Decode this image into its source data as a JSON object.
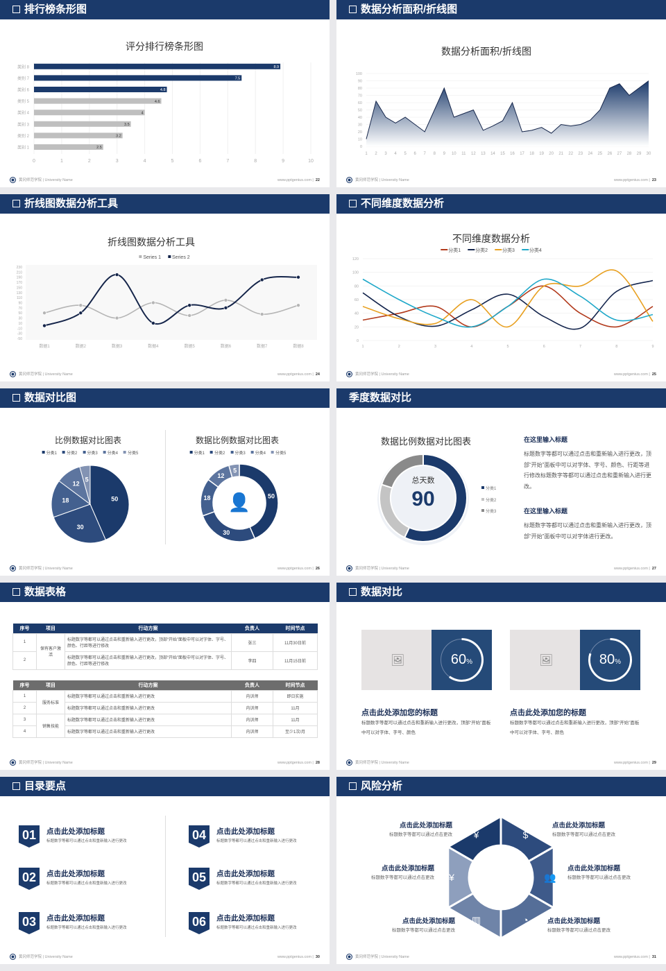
{
  "footer": {
    "org": "黄冈师范学院 | University Name",
    "url": "www.pptgenius.com"
  },
  "slides": [
    {
      "title": "排行榜条形图",
      "page": "22"
    },
    {
      "title": "数据分析面积/折线图",
      "page": "23"
    },
    {
      "title": "折线图数据分析工具",
      "page": "24"
    },
    {
      "title": "不同维度数据分析",
      "page": "25"
    },
    {
      "title": "数据对比图",
      "page": "26"
    },
    {
      "title": "季度数据对比",
      "page": "27"
    },
    {
      "title": "数据表格",
      "page": "28"
    },
    {
      "title": "数据对比",
      "page": "29"
    },
    {
      "title": "目录要点",
      "page": "30"
    },
    {
      "title": "风险分析",
      "page": "31"
    }
  ],
  "chart_data": [
    {
      "type": "bar",
      "orientation": "horizontal",
      "title": "评分排行榜条形图",
      "categories": [
        "类别 1",
        "类别 2",
        "类别 3",
        "类别 4",
        "类别 5",
        "类别 6",
        "类别 7",
        "类别 8"
      ],
      "values": [
        2.5,
        3.2,
        3.5,
        4,
        4.6,
        4.8,
        7.5,
        8.9
      ],
      "xlim": [
        0,
        10
      ],
      "xticks": [
        "0",
        "1",
        "2",
        "3",
        "4",
        "5",
        "6",
        "7",
        "8",
        "9",
        "10"
      ],
      "highlight_color": "#1b3a6b",
      "base_color": "#bfbfbf",
      "grid": true
    },
    {
      "type": "area",
      "title": "数据分析面积/折线图",
      "x": [
        1,
        2,
        3,
        4,
        5,
        6,
        7,
        8,
        9,
        10,
        11,
        12,
        13,
        14,
        15,
        16,
        17,
        18,
        19,
        20,
        21,
        22,
        23,
        24,
        25,
        26,
        27,
        28,
        29,
        30
      ],
      "values": [
        10,
        62,
        40,
        32,
        40,
        30,
        20,
        50,
        80,
        40,
        45,
        50,
        22,
        28,
        35,
        60,
        20,
        22,
        26,
        18,
        30,
        28,
        30,
        36,
        50,
        80,
        86,
        70,
        80,
        90
      ],
      "ylim": [
        0,
        100
      ],
      "yticks": [
        "0",
        "10",
        "20",
        "30",
        "40",
        "50",
        "60",
        "70",
        "80",
        "90",
        "100"
      ],
      "color": "#1b3a6b"
    },
    {
      "type": "line",
      "title": "折线图数据分析工具",
      "categories": [
        "数据1",
        "数据2",
        "数据3",
        "数据4",
        "数据5",
        "数据6",
        "数据7",
        "数据8"
      ],
      "ylim": [
        -50,
        230
      ],
      "yticks": [
        "-50",
        "-30",
        "-10",
        "10",
        "30",
        "50",
        "70",
        "90",
        "110",
        "130",
        "150",
        "170",
        "190",
        "210",
        "230"
      ],
      "legend": "top",
      "series": [
        {
          "name": "Series 1",
          "values": [
            50,
            80,
            30,
            90,
            40,
            100,
            45,
            80
          ],
          "color": "#b5b5b5"
        },
        {
          "name": "Series 2",
          "values": [
            0,
            50,
            200,
            10,
            80,
            70,
            180,
            190
          ],
          "color": "#15254a"
        }
      ]
    },
    {
      "type": "line",
      "title": "不同维度数据分析",
      "categories": [
        "1",
        "2",
        "3",
        "4",
        "5",
        "6",
        "7",
        "8",
        "9"
      ],
      "ylim": [
        0,
        120
      ],
      "yticks": [
        "0",
        "20",
        "40",
        "60",
        "80",
        "100",
        "120"
      ],
      "legend": "top",
      "series": [
        {
          "name": "分类1",
          "values": [
            30,
            40,
            50,
            20,
            50,
            80,
            40,
            20,
            50
          ],
          "color": "#b23a1c"
        },
        {
          "name": "分类2",
          "values": [
            70,
            35,
            21,
            45,
            68,
            35,
            18,
            72,
            88
          ],
          "color": "#14254d"
        },
        {
          "name": "分类3",
          "values": [
            50,
            32,
            25,
            60,
            20,
            80,
            80,
            102,
            28
          ],
          "color": "#e8a020"
        },
        {
          "name": "分类4",
          "values": [
            90,
            60,
            35,
            20,
            50,
            90,
            65,
            30,
            38
          ],
          "color": "#1fa8c9"
        }
      ]
    },
    {
      "type": "pie",
      "title": "比例数据对比图表",
      "categories": [
        "分类1",
        "分类2",
        "分类3",
        "分类4",
        "分类5"
      ],
      "values": [
        50,
        30,
        18,
        12,
        5
      ],
      "colors": [
        "#1b3a6b",
        "#2d4b7d",
        "#43608f",
        "#5d759f",
        "#8393b3"
      ],
      "legend": "top"
    },
    {
      "type": "pie",
      "variant": "donut",
      "title": "数据比例数据对比图表",
      "categories": [
        "分类1",
        "分类2",
        "分类3",
        "分类4",
        "分类5"
      ],
      "values": [
        50,
        30,
        18,
        12,
        5
      ],
      "colors": [
        "#1b3a6b",
        "#2d4b7d",
        "#43608f",
        "#5d759f",
        "#8393b3"
      ],
      "legend": "top",
      "center_icon": "customer-service-icon"
    },
    {
      "type": "pie",
      "variant": "donut",
      "title": "数据比例数据对比图表",
      "categories": [
        "分类1",
        "分类2",
        "分类3"
      ],
      "values": [
        57,
        23,
        20
      ],
      "colors": [
        "#1b3a6b",
        "#c4c4c4",
        "#8a8a8a"
      ],
      "legend": "right",
      "center_label": "总天数",
      "center_value": "90"
    }
  ],
  "quarter": {
    "blocks": [
      {
        "heading": "在这里输入标题",
        "text": "标题数字等都可以通过点击和重新输入进行更改，顶部“开始”面板中可以对字体、字号、颜色、行距等进行修改标题数字等都可以通过点击和重新输入进行更改。"
      },
      {
        "heading": "在这里输入标题",
        "text": "标题数字等都可以通过点击和重新输入进行更改，顶部“开始”面板中可以对字体进行更改。"
      }
    ]
  },
  "table1": {
    "headers": [
      "序号",
      "项目",
      "行动方案",
      "负责人",
      "时间节点"
    ],
    "group": "保有客户激活",
    "rows": [
      {
        "no": "1",
        "plan": "标题数字等都可以通过点击和重新输入进行更改，顶部“开始”面板中可以对字体、字号、颜色、行距等进行修改",
        "owner": "张三",
        "time": "11月30日前"
      },
      {
        "no": "2",
        "plan": "标题数字等都可以通过点击和重新输入进行更改，顶部“开始”面板中可以对字体、字号、颜色、行距等进行修改",
        "owner": "李四",
        "time": "11月15日前"
      }
    ]
  },
  "table2": {
    "headers": [
      "序号",
      "项目",
      "行动方案",
      "负责人",
      "时间节点"
    ],
    "groups": [
      "服务标准",
      "销售技能"
    ],
    "rows": [
      {
        "no": "1",
        "plan": "标题数字等都可以通过点击和重新输入进行更改",
        "owner": "内训师",
        "time": "即日实施"
      },
      {
        "no": "2",
        "plan": "标题数字等都可以通过点击和重新输入进行更改",
        "owner": "内训师",
        "time": "11月"
      },
      {
        "no": "3",
        "plan": "标题数字等都可以通过点击和重新输入进行更改",
        "owner": "内训师",
        "time": "11月"
      },
      {
        "no": "4",
        "plan": "标题数字等都可以通过点击和重新输入进行更改",
        "owner": "内训师",
        "time": "至少1次/月"
      }
    ]
  },
  "compare": {
    "cards": [
      {
        "percent": 60,
        "value": "60",
        "unit": "%",
        "title": "点击此处添加您的标题",
        "text": "标题数字等都可以通过点击和重新输入进行更改，顶部“开始”面板中可以对字体、字号、颜色"
      },
      {
        "percent": 80,
        "value": "80",
        "unit": "%",
        "title": "点击此处添加您的标题",
        "text": "标题数字等都可以通过点击和重新输入进行更改，顶部“开始”面板中可以对字体、字号、颜色"
      }
    ]
  },
  "toc": {
    "items": [
      {
        "num": "01",
        "title": "点击此处添加标题",
        "sub": "标题数字等都可以通过点击和重新输入进行更改"
      },
      {
        "num": "02",
        "title": "点击此处添加标题",
        "sub": "标题数字等都可以通过点击和重新输入进行更改"
      },
      {
        "num": "03",
        "title": "点击此处添加标题",
        "sub": "标题数字等都可以通过点击和重新输入进行更改"
      },
      {
        "num": "04",
        "title": "点击此处添加标题",
        "sub": "标题数字等都可以通过点击和重新输入进行更改"
      },
      {
        "num": "05",
        "title": "点击此处添加标题",
        "sub": "标题数字等都可以通过点击和重新输入进行更改"
      },
      {
        "num": "06",
        "title": "点击此处添加标题",
        "sub": "标题数字等都可以通过点击和重新输入进行更改"
      }
    ]
  },
  "risk": {
    "items": [
      {
        "title": "点击此处添加标题",
        "sub": "标题数字等都可以通过点击更改",
        "icon": "money-bag-icon"
      },
      {
        "title": "点击此处添加标题",
        "sub": "标题数字等都可以通过点击更改",
        "icon": "coins-icon"
      },
      {
        "title": "点击此处添加标题",
        "sub": "标题数字等都可以通过点击更改",
        "icon": "users-icon"
      },
      {
        "title": "点击此处添加标题",
        "sub": "标题数字等都可以通过点击更改",
        "icon": "pie-chart-icon"
      },
      {
        "title": "点击此处添加标题",
        "sub": "标题数字等都可以通过点击更改",
        "icon": "building-icon"
      },
      {
        "title": "点击此处添加标题",
        "sub": "标题数字等都可以通过点击更改",
        "icon": "hand-money-icon"
      }
    ],
    "colors": [
      "#1b3a6b",
      "#2d4b7d",
      "#3e5a8a",
      "#556e98",
      "#6f84a8",
      "#8e9fbd"
    ]
  }
}
